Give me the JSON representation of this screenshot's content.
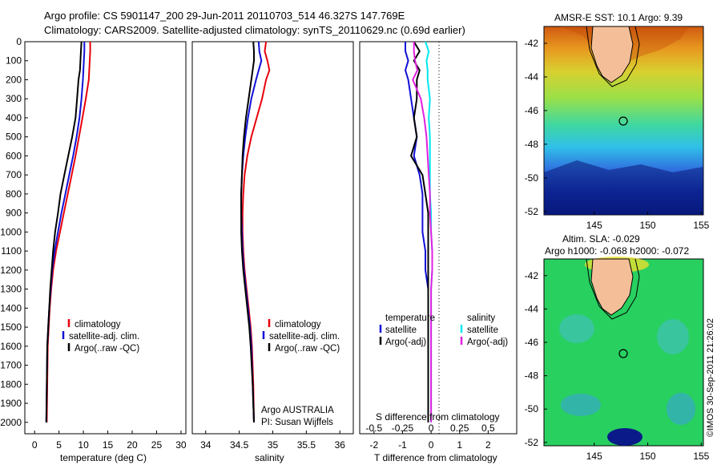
{
  "header": {
    "line1": "Argo profile: CS 5901147_200 29-Jun-2011 20110703_514 46.327S 147.769E",
    "line2": "Climatology: CARS2009. Satellite-adjusted climatology: synTS_20110629.nc (0.69d earlier)"
  },
  "colors": {
    "climatology": "#e8000b",
    "satellite": "#1010d8",
    "argo": "#000000",
    "satellite_salinity": "#00e8f0",
    "argo_salinity": "#e020e0"
  },
  "depth_ticks": [
    "0",
    "100",
    "200",
    "300",
    "400",
    "500",
    "600",
    "700",
    "800",
    "900",
    "1000",
    "1100",
    "1200",
    "1300",
    "1400",
    "1500",
    "1600",
    "1700",
    "1800",
    "1900",
    "2000"
  ],
  "notes": {
    "argo_australia": "Argo AUSTRALIA",
    "pi": "PI: Susan Wijffels",
    "credit": "©IMOS 30-Sep-2011 21:26:02"
  },
  "maps": {
    "sst_title": "AMSR-E SST: 10.1  Argo: 9.39",
    "sla_title1": "Altim. SLA: -0.029",
    "sla_title2": "Argo h1000: -0.068 h2000: -0.072",
    "lat_ticks": [
      "-42",
      "-44",
      "-46",
      "-48",
      "-50",
      "-52"
    ],
    "lon_ticks": [
      "145",
      "150",
      "155"
    ]
  },
  "chart_data": [
    {
      "type": "line",
      "xlabel": "temperature (deg C)",
      "ylabel": "",
      "xlim": [
        -2,
        31
      ],
      "ylim": [
        2060,
        0
      ],
      "x_ticks": [
        "0",
        "5",
        "10",
        "15",
        "20",
        "25",
        "30"
      ],
      "legend": [
        "climatology",
        "satellite-adj. clim.",
        "Argo(..raw -QC)"
      ],
      "series": [
        {
          "name": "climatology",
          "x": [
            11.4,
            11.4,
            11.3,
            11.2,
            11.1,
            10.5,
            9.8,
            9.1,
            8.4,
            7.6,
            6.8,
            6.0,
            5.2,
            4.4,
            3.8,
            3.4,
            3.1,
            2.9,
            2.7,
            2.6,
            2.5
          ],
          "depth": [
            0,
            50,
            100,
            150,
            200,
            300,
            400,
            500,
            600,
            700,
            800,
            900,
            1000,
            1100,
            1200,
            1300,
            1400,
            1500,
            1600,
            1800,
            2000
          ]
        },
        {
          "name": "satellite-adj. clim.",
          "x": [
            10.2,
            10.2,
            10.1,
            10.0,
            9.9,
            9.6,
            9.2,
            8.6,
            7.9,
            7.1,
            6.3,
            5.5,
            4.8,
            4.1,
            3.6,
            3.3,
            3.0,
            2.8,
            2.6,
            2.5,
            2.4
          ],
          "depth": [
            0,
            50,
            100,
            150,
            200,
            300,
            400,
            500,
            600,
            700,
            800,
            900,
            1000,
            1100,
            1200,
            1300,
            1400,
            1500,
            1600,
            1800,
            2000
          ]
        },
        {
          "name": "Argo(..raw -QC)",
          "x": [
            9.6,
            9.5,
            9.4,
            9.3,
            9.0,
            8.7,
            8.4,
            7.7,
            6.9,
            6.1,
            5.3,
            4.8,
            4.2,
            3.8,
            3.5,
            3.2,
            3.0,
            2.8,
            2.6,
            2.5,
            2.4
          ],
          "depth": [
            0,
            50,
            100,
            150,
            200,
            300,
            400,
            500,
            600,
            700,
            800,
            900,
            1000,
            1100,
            1200,
            1300,
            1400,
            1500,
            1600,
            1800,
            2000
          ]
        }
      ]
    },
    {
      "type": "line",
      "xlabel": "salinity",
      "ylabel": "",
      "xlim": [
        33.8,
        36.2
      ],
      "ylim": [
        2060,
        0
      ],
      "x_ticks": [
        "34",
        "34.5",
        "35",
        "35.5",
        "36"
      ],
      "legend": [
        "climatology",
        "satellite-adj. clim.",
        "Argo(..raw -QC)"
      ],
      "series": [
        {
          "name": "climatology",
          "x": [
            34.9,
            34.88,
            34.92,
            34.95,
            34.9,
            34.84,
            34.76,
            34.68,
            34.62,
            34.58,
            34.56,
            34.55,
            34.55,
            34.56,
            34.58,
            34.61,
            34.64,
            34.67,
            34.69,
            34.71,
            34.72
          ],
          "depth": [
            0,
            50,
            100,
            150,
            200,
            300,
            400,
            500,
            600,
            700,
            800,
            900,
            1000,
            1100,
            1200,
            1300,
            1400,
            1500,
            1600,
            1800,
            2000
          ]
        },
        {
          "name": "satellite-adj. clim.",
          "x": [
            34.79,
            34.8,
            34.83,
            34.79,
            34.75,
            34.68,
            34.63,
            34.59,
            34.56,
            34.54,
            34.53,
            34.53,
            34.54,
            34.55,
            34.57,
            34.6,
            34.63,
            34.66,
            34.68,
            34.7,
            34.72
          ],
          "depth": [
            0,
            50,
            100,
            150,
            200,
            300,
            400,
            500,
            600,
            700,
            800,
            900,
            1000,
            1100,
            1200,
            1300,
            1400,
            1500,
            1600,
            1800,
            2000
          ]
        },
        {
          "name": "Argo(..raw -QC)",
          "x": [
            34.71,
            34.72,
            34.72,
            34.7,
            34.68,
            34.64,
            34.6,
            34.57,
            34.55,
            34.54,
            34.53,
            34.53,
            34.53,
            34.54,
            34.56,
            34.59,
            34.62,
            34.65,
            34.67,
            34.7,
            34.72
          ],
          "depth": [
            0,
            50,
            100,
            150,
            200,
            300,
            400,
            500,
            600,
            700,
            800,
            900,
            1000,
            1100,
            1200,
            1300,
            1400,
            1500,
            1600,
            1800,
            2000
          ]
        }
      ]
    },
    {
      "type": "line",
      "xlabel": "T difference from climatology",
      "ylabel": "",
      "top_label": "S difference from climatology",
      "xlim": [
        -2.5,
        3.0
      ],
      "ylim": [
        2060,
        0
      ],
      "x_ticks": [
        "-2",
        "-1",
        "0",
        "1",
        "2"
      ],
      "top_ticks": [
        "-0.5",
        "-0.25",
        "0",
        "0.25",
        "0.5"
      ],
      "legend_groups": [
        "temperature",
        "salinity"
      ],
      "legend": [
        "satellite",
        "Argo(-adj)",
        "satellite",
        "Argo(-adj)"
      ],
      "series": [
        {
          "name": "temperature satellite",
          "x": [
            -0.9,
            -0.9,
            -0.8,
            -0.9,
            -0.8,
            -0.7,
            -0.6,
            -0.5,
            -0.6,
            -0.4,
            -0.3,
            -0.3,
            -0.3,
            -0.2,
            -0.2,
            -0.1,
            -0.1,
            -0.1,
            -0.1,
            -0.1,
            -0.1
          ],
          "depth": [
            0,
            50,
            100,
            150,
            200,
            300,
            400,
            500,
            600,
            700,
            800,
            900,
            1000,
            1100,
            1200,
            1300,
            1400,
            1500,
            1600,
            1800,
            2000
          ]
        },
        {
          "name": "temperature Argo(-adj)",
          "x": [
            -0.6,
            -0.4,
            -0.6,
            -0.4,
            -0.5,
            -0.5,
            -0.6,
            -0.5,
            -0.7,
            -0.3,
            -0.2,
            -0.1,
            -0.1,
            -0.1,
            -0.1,
            -0.1,
            -0.1,
            -0.1,
            -0.1,
            -0.1,
            -0.1
          ],
          "depth": [
            0,
            50,
            100,
            150,
            200,
            300,
            400,
            500,
            600,
            700,
            800,
            900,
            1000,
            1100,
            1200,
            1300,
            1400,
            1500,
            1600,
            1800,
            2000
          ]
        },
        {
          "name": "salinity satellite",
          "x": [
            -0.05,
            -0.02,
            -0.04,
            -0.03,
            -0.03,
            -0.01,
            -0.02,
            -0.01,
            -0.01,
            -0.01,
            -0.01,
            0.0,
            0.0,
            0.01,
            0.01,
            0.0,
            0.0,
            0.0,
            0.0,
            0.0,
            0.0
          ],
          "depth": [
            0,
            50,
            100,
            150,
            200,
            300,
            400,
            500,
            600,
            700,
            800,
            900,
            1000,
            1100,
            1200,
            1300,
            1400,
            1500,
            1600,
            1800,
            2000
          ]
        },
        {
          "name": "salinity Argo(-adj)",
          "x": [
            -0.15,
            -0.15,
            -0.14,
            -0.12,
            -0.16,
            -0.09,
            -0.06,
            -0.04,
            -0.03,
            -0.02,
            -0.01,
            -0.01,
            0.0,
            0.01,
            0.01,
            0.0,
            0.0,
            0.0,
            0.0,
            0.0,
            0.0
          ],
          "depth": [
            0,
            50,
            100,
            150,
            200,
            300,
            400,
            500,
            600,
            700,
            800,
            900,
            1000,
            1100,
            1200,
            1300,
            1400,
            1500,
            1600,
            1800,
            2000
          ]
        }
      ]
    }
  ]
}
